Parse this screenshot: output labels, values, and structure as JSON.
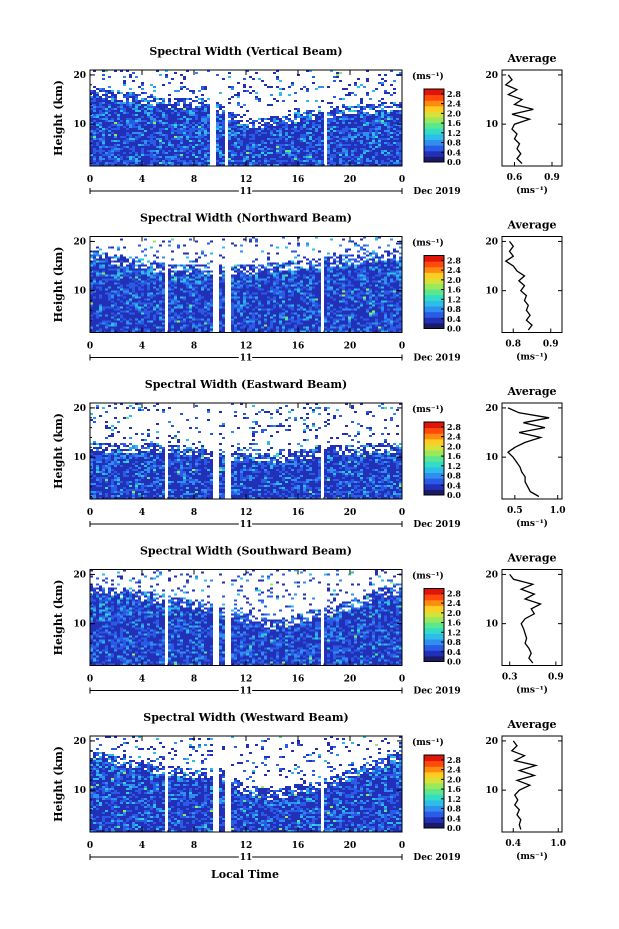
{
  "figure": {
    "xlabel": "Local Time",
    "date_label": "Dec 2019",
    "day_label": "11"
  },
  "colorbar": {
    "unit_label": "(ms⁻¹)",
    "ticks": [
      "0.0",
      "0.4",
      "0.8",
      "1.2",
      "1.6",
      "2.0",
      "2.4",
      "2.8"
    ],
    "colors": [
      "#1a1a66",
      "#2230b8",
      "#2a5be6",
      "#2f8ff0",
      "#2ebde8",
      "#33dcc6",
      "#5be690",
      "#9ae85c",
      "#d6e23a",
      "#ffcc22",
      "#ff8a10",
      "#ff4a0c",
      "#e0150a"
    ]
  },
  "chart_data": [
    {
      "type": "heatmap",
      "title": "Spectral Width (Vertical Beam)",
      "ylabel": "Height (km)",
      "xticks": [
        "0",
        "4",
        "8",
        "12",
        "16",
        "20",
        "0"
      ],
      "yticks": [
        "10",
        "20"
      ],
      "xlim": [
        0,
        24
      ],
      "ylim": [
        1.5,
        21
      ],
      "gaps_hours": [
        [
          9.2,
          9.6
        ],
        [
          10.2,
          10.6
        ],
        [
          17.8,
          18.1
        ]
      ],
      "clear_tops": [
        [
          0,
          17.8
        ],
        [
          6,
          15.5
        ],
        [
          9,
          15.5
        ],
        [
          12,
          11.2
        ],
        [
          14,
          11.8
        ],
        [
          18,
          13.5
        ],
        [
          22,
          14.5
        ],
        [
          24,
          14.5
        ]
      ],
      "profile": {
        "title": "Average",
        "xlabel": "(ms⁻¹)",
        "xticks": [
          "0.6",
          "0.9"
        ],
        "xlim": [
          0.5,
          0.98
        ],
        "yticks": [
          "10",
          "20"
        ],
        "heights": [
          2,
          3,
          4,
          5,
          6,
          7,
          8,
          9,
          10,
          11,
          12,
          13,
          14,
          15,
          16,
          17,
          18,
          19,
          20
        ],
        "values": [
          0.66,
          0.62,
          0.65,
          0.62,
          0.64,
          0.6,
          0.62,
          0.58,
          0.6,
          0.72,
          0.58,
          0.75,
          0.6,
          0.66,
          0.55,
          0.62,
          0.53,
          0.58,
          0.55
        ]
      }
    },
    {
      "type": "heatmap",
      "title": "Spectral Width (Northward Beam)",
      "ylabel": "Height (km)",
      "xticks": [
        "0",
        "4",
        "8",
        "12",
        "16",
        "20",
        "0"
      ],
      "yticks": [
        "10",
        "20"
      ],
      "xlim": [
        0,
        24
      ],
      "ylim": [
        1.5,
        21
      ],
      "gaps_hours": [
        [
          5.6,
          5.9
        ],
        [
          9.4,
          9.8
        ],
        [
          10.3,
          10.7
        ],
        [
          17.6,
          17.9
        ]
      ],
      "clear_tops": [
        [
          0,
          18.5
        ],
        [
          6,
          15.5
        ],
        [
          10,
          15.2
        ],
        [
          14,
          15.8
        ],
        [
          18,
          17
        ],
        [
          24,
          18.5
        ]
      ],
      "profile": {
        "title": "Average",
        "xlabel": "(ms⁻¹)",
        "xticks": [
          "0.8",
          "0.9"
        ],
        "xlim": [
          0.77,
          0.93
        ],
        "yticks": [
          "10",
          "20"
        ],
        "heights": [
          2,
          3,
          4,
          5,
          6,
          7,
          8,
          9,
          10,
          11,
          12,
          13,
          14,
          15,
          16,
          17,
          18,
          19,
          20
        ],
        "values": [
          0.84,
          0.85,
          0.835,
          0.845,
          0.835,
          0.84,
          0.83,
          0.835,
          0.82,
          0.83,
          0.815,
          0.83,
          0.81,
          0.8,
          0.78,
          0.8,
          0.79,
          0.8,
          0.79
        ]
      }
    },
    {
      "type": "heatmap",
      "title": "Spectral Width (Eastward Beam)",
      "ylabel": "Height (km)",
      "xticks": [
        "0",
        "4",
        "8",
        "12",
        "16",
        "20",
        "0"
      ],
      "yticks": [
        "10",
        "20"
      ],
      "xlim": [
        0,
        24
      ],
      "ylim": [
        1.5,
        21
      ],
      "gaps_hours": [
        [
          5.6,
          5.9
        ],
        [
          9.4,
          9.8
        ],
        [
          10.3,
          10.7
        ],
        [
          17.6,
          17.9
        ]
      ],
      "clear_tops": [
        [
          0,
          13.2
        ],
        [
          6,
          12.8
        ],
        [
          10,
          11.8
        ],
        [
          14,
          10.8
        ],
        [
          18,
          12.5
        ],
        [
          24,
          13.2
        ]
      ],
      "profile": {
        "title": "Average",
        "xlabel": "(ms⁻¹)",
        "xticks": [
          "0.5",
          "1.0"
        ],
        "xlim": [
          0.35,
          1.05
        ],
        "yticks": [
          "10",
          "20"
        ],
        "heights": [
          2,
          3,
          4,
          5,
          6,
          7,
          8,
          9,
          10,
          11,
          12,
          13,
          14,
          15,
          16,
          17,
          18,
          19,
          20
        ],
        "values": [
          0.78,
          0.68,
          0.65,
          0.62,
          0.62,
          0.58,
          0.56,
          0.52,
          0.48,
          0.42,
          0.5,
          0.62,
          0.8,
          0.55,
          0.85,
          0.6,
          0.9,
          0.55,
          0.42
        ]
      }
    },
    {
      "type": "heatmap",
      "title": "Spectral Width (Southward Beam)",
      "ylabel": "Height (km)",
      "xticks": [
        "0",
        "4",
        "8",
        "12",
        "16",
        "20",
        "0"
      ],
      "yticks": [
        "10",
        "20"
      ],
      "xlim": [
        0,
        24
      ],
      "ylim": [
        1.5,
        21
      ],
      "gaps_hours": [
        [
          5.6,
          5.9
        ],
        [
          9.4,
          9.8
        ],
        [
          10.3,
          10.7
        ],
        [
          17.6,
          17.9
        ]
      ],
      "clear_tops": [
        [
          0,
          18.5
        ],
        [
          6,
          16
        ],
        [
          10,
          14
        ],
        [
          14,
          10.8
        ],
        [
          18,
          13.5
        ],
        [
          24,
          18.5
        ]
      ],
      "profile": {
        "title": "Average",
        "xlabel": "(ms⁻¹)",
        "xticks": [
          "0.3",
          "0.9"
        ],
        "xlim": [
          0.2,
          0.98
        ],
        "yticks": [
          "10",
          "20"
        ],
        "heights": [
          2,
          3,
          4,
          5,
          6,
          7,
          8,
          9,
          10,
          11,
          12,
          13,
          14,
          15,
          16,
          17,
          18,
          19,
          20
        ],
        "values": [
          0.6,
          0.55,
          0.58,
          0.55,
          0.5,
          0.52,
          0.5,
          0.48,
          0.45,
          0.5,
          0.62,
          0.58,
          0.7,
          0.5,
          0.62,
          0.45,
          0.6,
          0.35,
          0.3
        ]
      }
    },
    {
      "type": "heatmap",
      "title": "Spectral Width (Westward Beam)",
      "ylabel": "Height (km)",
      "xticks": [
        "0",
        "4",
        "8",
        "12",
        "16",
        "20",
        "0"
      ],
      "yticks": [
        "10",
        "20"
      ],
      "xlim": [
        0,
        24
      ],
      "ylim": [
        1.5,
        21
      ],
      "gaps_hours": [
        [
          5.6,
          5.9
        ],
        [
          9.4,
          9.8
        ],
        [
          10.3,
          10.7
        ],
        [
          17.6,
          17.9
        ]
      ],
      "clear_tops": [
        [
          0,
          18.5
        ],
        [
          6,
          15
        ],
        [
          10,
          14.5
        ],
        [
          12,
          11.2
        ],
        [
          14,
          10.2
        ],
        [
          18,
          12.5
        ],
        [
          24,
          18.5
        ]
      ],
      "profile": {
        "title": "Average",
        "xlabel": "(ms⁻¹)",
        "xticks": [
          "0.4",
          "1.0"
        ],
        "xlim": [
          0.25,
          1.05
        ],
        "yticks": [
          "10",
          "20"
        ],
        "heights": [
          2,
          3,
          4,
          5,
          6,
          7,
          8,
          9,
          10,
          11,
          12,
          13,
          14,
          15,
          16,
          17,
          18,
          19,
          20
        ],
        "values": [
          0.5,
          0.48,
          0.5,
          0.45,
          0.48,
          0.42,
          0.46,
          0.42,
          0.48,
          0.62,
          0.45,
          0.68,
          0.48,
          0.7,
          0.42,
          0.55,
          0.38,
          0.45,
          0.4
        ]
      }
    }
  ]
}
